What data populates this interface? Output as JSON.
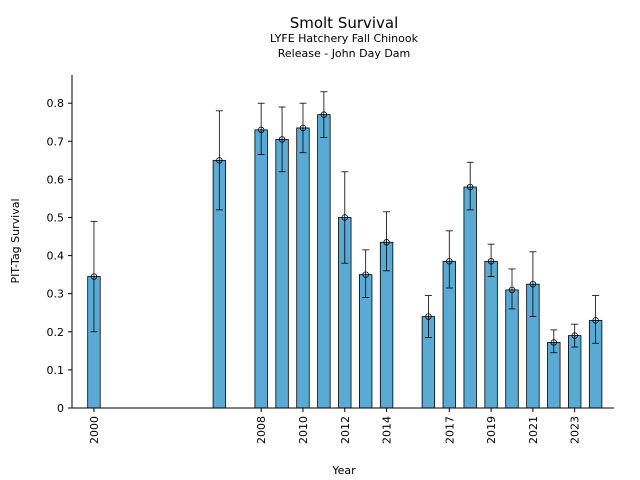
{
  "chart_data": {
    "type": "bar",
    "title": "Smolt Survival",
    "subtitle": [
      "LYFE Hatchery Fall Chinook",
      "Release - John Day Dam"
    ],
    "x_label": "Year",
    "y_label": "PIT-Tag Survival",
    "x": [
      2000,
      2006,
      2008,
      2009,
      2010,
      2011,
      2012,
      2013,
      2014,
      2016,
      2017,
      2018,
      2019,
      2020,
      2021,
      2022,
      2023,
      2024
    ],
    "values": [
      0.345,
      0.65,
      0.73,
      0.705,
      0.735,
      0.77,
      0.5,
      0.35,
      0.435,
      0.24,
      0.385,
      0.58,
      0.385,
      0.31,
      0.325,
      0.172,
      0.19,
      0.23
    ],
    "lower": [
      0.2,
      0.52,
      0.665,
      0.62,
      0.67,
      0.71,
      0.38,
      0.29,
      0.36,
      0.185,
      0.315,
      0.52,
      0.345,
      0.26,
      0.24,
      0.145,
      0.16,
      0.17
    ],
    "upper": [
      0.49,
      0.78,
      0.8,
      0.79,
      0.8,
      0.83,
      0.62,
      0.415,
      0.515,
      0.295,
      0.465,
      0.645,
      0.43,
      0.365,
      0.41,
      0.205,
      0.22,
      0.295
    ],
    "color": "#5aaad6",
    "xlim": [
      1998.95,
      2024.88
    ],
    "xticks": [
      2000,
      2008,
      2010,
      2012,
      2014,
      2017,
      2019,
      2021,
      2023
    ],
    "ylim": [
      0,
      0.874
    ],
    "yticks": [
      0,
      0.1,
      0.2,
      0.3,
      0.4,
      0.5,
      0.6,
      0.7,
      0.8
    ],
    "grid": false
  }
}
